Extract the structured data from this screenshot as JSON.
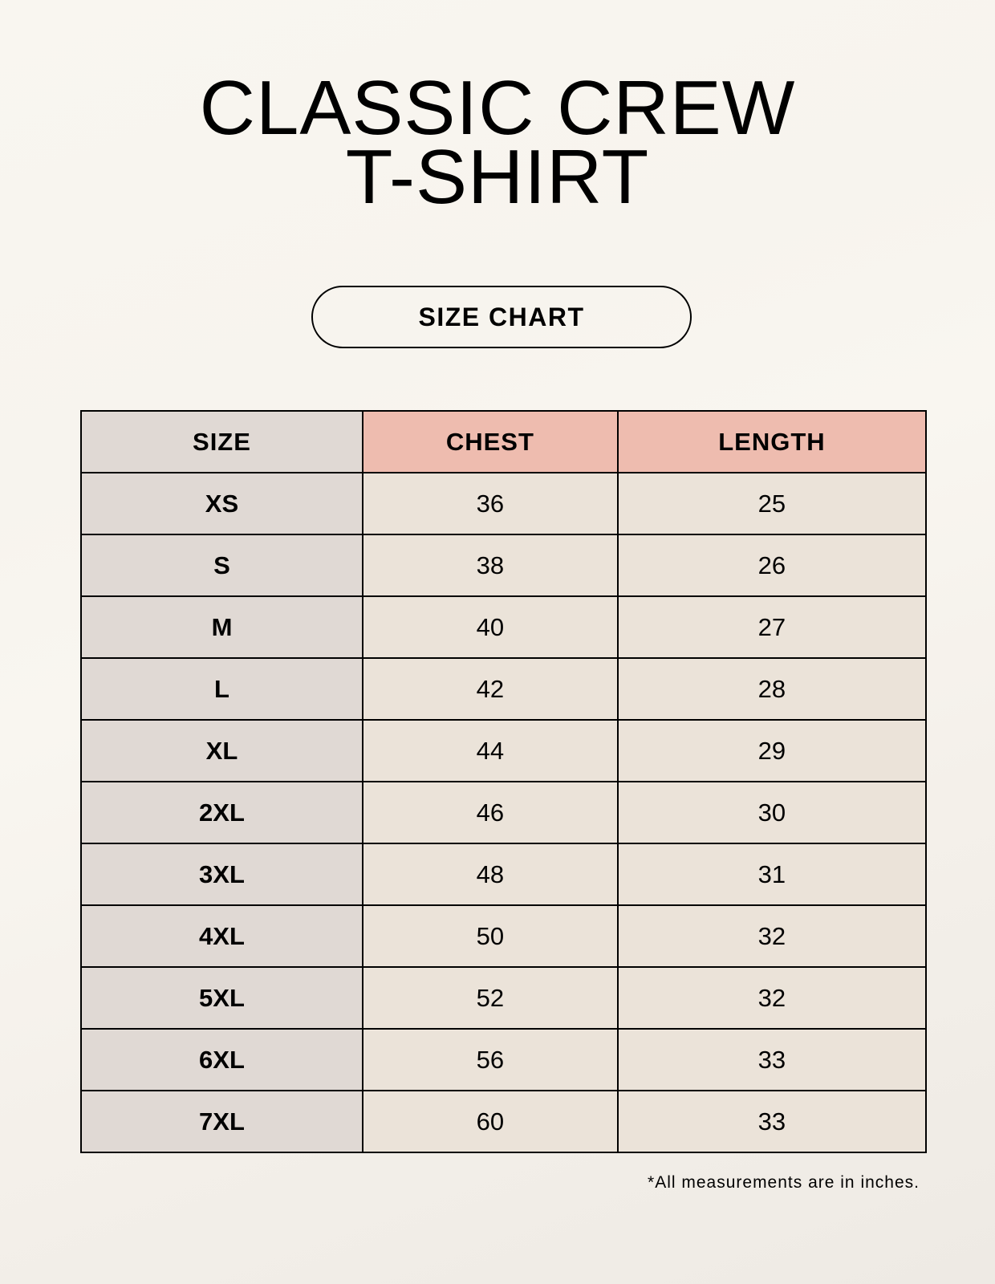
{
  "title_line1": "CLASSIC CREW",
  "title_line2": "T-SHIRT",
  "subtitle": "SIZE CHART",
  "table": {
    "headers": [
      "SIZE",
      "CHEST",
      "LENGTH"
    ],
    "rows": [
      [
        "XS",
        "36",
        "25"
      ],
      [
        "S",
        "38",
        "26"
      ],
      [
        "M",
        "40",
        "27"
      ],
      [
        "L",
        "42",
        "28"
      ],
      [
        "XL",
        "44",
        "29"
      ],
      [
        "2XL",
        "46",
        "30"
      ],
      [
        "3XL",
        "48",
        "31"
      ],
      [
        "4XL",
        "50",
        "32"
      ],
      [
        "5XL",
        "52",
        "32"
      ],
      [
        "6XL",
        "56",
        "33"
      ],
      [
        "7XL",
        "60",
        "33"
      ]
    ]
  },
  "footnote": "*All measurements are in inches.",
  "colors": {
    "size_column": "#e0d9d4",
    "header_accent": "#eebcaf",
    "value_cells": "#ebe3d9"
  }
}
